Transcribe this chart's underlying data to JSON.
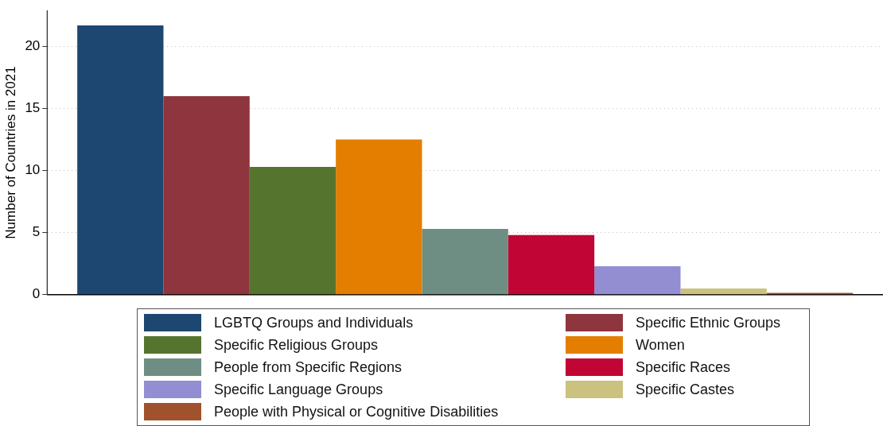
{
  "chart_data": {
    "type": "bar",
    "ylabel": "Number of Countries in 2021",
    "categories": [
      null
    ],
    "series": [
      {
        "name": "LGBTQ Groups and Individuals",
        "color": "#1d4770",
        "values": [
          21.7
        ]
      },
      {
        "name": "Specific Ethnic Groups",
        "color": "#8e353e",
        "values": [
          16.0
        ]
      },
      {
        "name": "Specific Religious Groups",
        "color": "#55752f",
        "values": [
          10.3
        ]
      },
      {
        "name": "Women",
        "color": "#e37e00",
        "values": [
          12.5
        ]
      },
      {
        "name": "People from Specific Regions",
        "color": "#6e8e84",
        "values": [
          5.3
        ]
      },
      {
        "name": "Specific Races",
        "color": "#c10534",
        "values": [
          4.8
        ]
      },
      {
        "name": "Specific Language Groups",
        "color": "#938dd2",
        "values": [
          2.3
        ]
      },
      {
        "name": "Specific Castes",
        "color": "#cac27e",
        "values": [
          0.5
        ]
      },
      {
        "name": "People with Physical or Cognitive Disabilities",
        "color": "#a0522d",
        "values": [
          0.15
        ]
      }
    ],
    "ylim": [
      0,
      22.9
    ],
    "yticks": [
      0,
      5,
      10,
      15,
      20
    ],
    "grid": "y",
    "legend": "bottom"
  }
}
